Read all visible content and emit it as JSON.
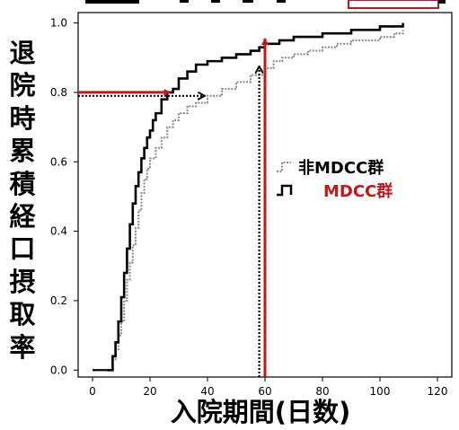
{
  "chart_data": {
    "type": "line",
    "ylabel": "退院時累積経口摂取率",
    "xlabel": "入院期間(日数)",
    "xlim": [
      -5,
      125
    ],
    "ylim": [
      -0.02,
      1.03
    ],
    "x_ticks": [
      "0",
      "20",
      "40",
      "60",
      "80",
      "100",
      "120"
    ],
    "y_ticks": [
      "0.0",
      "0.2",
      "0.4",
      "0.6",
      "0.8",
      "1.0"
    ],
    "grid": false,
    "legend_position": "center-right",
    "series": [
      {
        "name": "非MDCC群",
        "color": "#888888",
        "style": "dotted-step",
        "x": [
          5,
          7,
          8,
          9,
          10,
          11,
          12,
          13,
          14,
          15,
          16,
          17,
          18,
          19,
          20,
          22,
          24,
          26,
          28,
          30,
          33,
          36,
          40,
          45,
          50,
          55,
          60,
          63,
          66,
          70,
          75,
          80,
          85,
          90,
          95,
          100,
          105,
          108
        ],
        "y": [
          0.0,
          0.03,
          0.06,
          0.1,
          0.14,
          0.2,
          0.26,
          0.31,
          0.36,
          0.41,
          0.46,
          0.51,
          0.55,
          0.58,
          0.61,
          0.64,
          0.67,
          0.7,
          0.72,
          0.74,
          0.76,
          0.77,
          0.79,
          0.81,
          0.83,
          0.85,
          0.87,
          0.89,
          0.9,
          0.91,
          0.92,
          0.93,
          0.94,
          0.95,
          0.95,
          0.96,
          0.97,
          0.98
        ]
      },
      {
        "name": "MDCC群",
        "color": "#000000",
        "style": "solid-step",
        "x": [
          5,
          7,
          8,
          9,
          10,
          11,
          12,
          13,
          14,
          15,
          16,
          17,
          18,
          19,
          20,
          21,
          22,
          24,
          26,
          28,
          30,
          33,
          36,
          40,
          45,
          50,
          55,
          58,
          60,
          65,
          70,
          75,
          80,
          85,
          90,
          95,
          100,
          105,
          108
        ],
        "y": [
          0.0,
          0.04,
          0.08,
          0.14,
          0.21,
          0.28,
          0.35,
          0.42,
          0.48,
          0.53,
          0.57,
          0.61,
          0.64,
          0.67,
          0.69,
          0.72,
          0.74,
          0.78,
          0.8,
          0.81,
          0.84,
          0.86,
          0.88,
          0.89,
          0.9,
          0.91,
          0.92,
          0.93,
          0.94,
          0.95,
          0.96,
          0.96,
          0.97,
          0.97,
          0.98,
          0.98,
          0.99,
          0.99,
          1.0
        ]
      }
    ],
    "annotations": [
      {
        "type": "arrow",
        "color": "#c0181c",
        "from": [
          -5,
          0.8
        ],
        "to": [
          27,
          0.8
        ],
        "style": "solid"
      },
      {
        "type": "arrow",
        "color": "#000000",
        "from": [
          -5,
          0.79
        ],
        "to": [
          39,
          0.79
        ],
        "style": "dotted"
      },
      {
        "type": "arrow",
        "color": "#c0181c",
        "from": [
          60,
          -0.02
        ],
        "to": [
          60,
          0.955
        ],
        "style": "solid"
      },
      {
        "type": "arrow",
        "color": "#000000",
        "from": [
          58,
          -0.02
        ],
        "to": [
          58,
          0.875
        ],
        "style": "dotted"
      }
    ]
  }
}
